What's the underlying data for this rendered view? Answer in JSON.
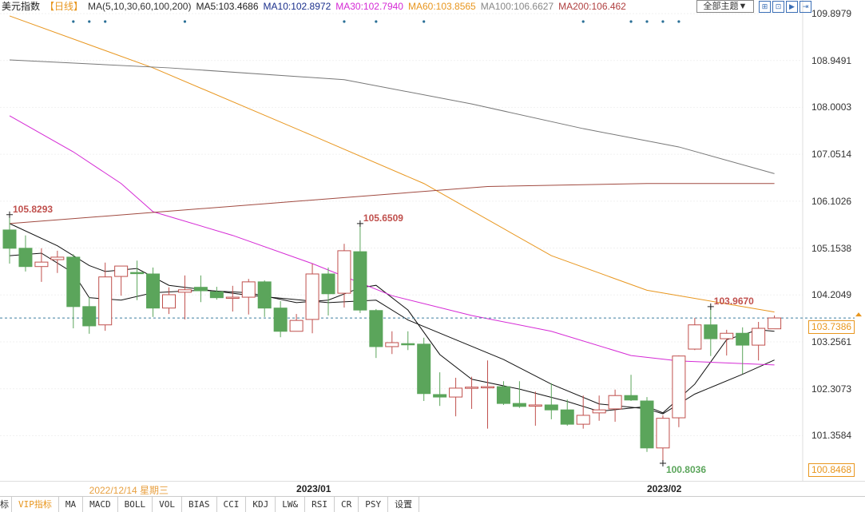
{
  "legend": {
    "name": "美元指数",
    "period": "【日线】",
    "ma_params": "MA(5,10,30,60,100,200)",
    "items": [
      {
        "label": "MA5:103.4686",
        "color": "#222222"
      },
      {
        "label": "MA10:102.8972",
        "color": "#1a2f8c"
      },
      {
        "label": "MA30:102.7940",
        "color": "#d52ad5"
      },
      {
        "label": "MA60:103.8565",
        "color": "#e8961e"
      },
      {
        "label": "MA100:106.6627",
        "color": "#888888"
      },
      {
        "label": "MA200:106.462",
        "color": "#b04040"
      }
    ]
  },
  "toolbar": {
    "theme_label": "全部主题▼",
    "tool_icons": [
      "grid-icon",
      "zoom-in-icon",
      "play-icon",
      "export-icon"
    ]
  },
  "chart_data": {
    "type": "candlestick",
    "up_color": "#c0504d",
    "down_color": "#5ba55b",
    "ylim": [
      100.8468,
      109.8979
    ],
    "y_ticks": [
      "109.8979",
      "108.9491",
      "108.0003",
      "107.0514",
      "106.1026",
      "105.1538",
      "104.2049",
      "103.2561",
      "102.3073",
      "101.3584"
    ],
    "current_price": "103.7386",
    "lowest_visible": "100.8468",
    "x_labels": [
      {
        "text": "2022/12/14 星期三",
        "index": 7,
        "highlight": true
      },
      {
        "text": "2023/01",
        "index": 19,
        "highlight": false
      },
      {
        "text": "2023/02",
        "index": 41,
        "highlight": false
      }
    ],
    "ohlc": [
      [
        105.52,
        105.83,
        104.84,
        105.15
      ],
      [
        105.15,
        105.41,
        104.68,
        104.78
      ],
      [
        104.78,
        105.15,
        104.47,
        104.87
      ],
      [
        104.92,
        105.1,
        104.65,
        104.97
      ],
      [
        104.97,
        105.03,
        103.53,
        103.97
      ],
      [
        103.97,
        104.16,
        103.42,
        103.58
      ],
      [
        103.6,
        104.86,
        103.48,
        104.57
      ],
      [
        104.58,
        104.79,
        104.19,
        104.79
      ],
      [
        104.66,
        104.9,
        104.1,
        104.65
      ],
      [
        104.63,
        104.76,
        103.76,
        103.94
      ],
      [
        103.94,
        104.36,
        103.82,
        104.21
      ],
      [
        104.26,
        104.6,
        103.71,
        104.31
      ],
      [
        104.36,
        104.6,
        104.06,
        104.29
      ],
      [
        104.27,
        104.37,
        104.11,
        104.15
      ],
      [
        104.15,
        104.39,
        103.87,
        104.16
      ],
      [
        104.16,
        104.53,
        103.81,
        104.47
      ],
      [
        104.47,
        104.5,
        103.76,
        103.94
      ],
      [
        103.94,
        104.08,
        103.35,
        103.47
      ],
      [
        103.47,
        103.82,
        103.47,
        103.69
      ],
      [
        103.71,
        104.84,
        103.43,
        104.63
      ],
      [
        104.63,
        104.76,
        103.79,
        104.23
      ],
      [
        104.24,
        105.24,
        103.95,
        105.1
      ],
      [
        105.08,
        105.65,
        103.84,
        103.9
      ],
      [
        103.89,
        103.92,
        102.93,
        103.16
      ],
      [
        103.16,
        103.47,
        103.01,
        103.24
      ],
      [
        103.22,
        103.47,
        103.09,
        103.21
      ],
      [
        103.21,
        103.34,
        102.06,
        102.21
      ],
      [
        102.19,
        102.64,
        101.96,
        102.14
      ],
      [
        102.14,
        102.53,
        101.75,
        102.32
      ],
      [
        102.32,
        102.55,
        101.9,
        102.34
      ],
      [
        102.34,
        102.88,
        101.5,
        102.35
      ],
      [
        102.35,
        102.46,
        101.98,
        102.01
      ],
      [
        102.01,
        102.46,
        101.92,
        101.95
      ],
      [
        101.98,
        102.25,
        101.56,
        101.98
      ],
      [
        101.98,
        102.42,
        101.69,
        101.88
      ],
      [
        101.88,
        102.09,
        101.56,
        101.59
      ],
      [
        101.59,
        102.17,
        101.5,
        101.77
      ],
      [
        101.82,
        102.17,
        101.66,
        101.88
      ],
      [
        101.9,
        102.29,
        101.64,
        102.17
      ],
      [
        102.17,
        102.59,
        102.06,
        102.08
      ],
      [
        102.06,
        102.14,
        101.03,
        101.11
      ],
      [
        101.11,
        101.77,
        100.8,
        101.71
      ],
      [
        101.72,
        102.98,
        101.53,
        102.97
      ],
      [
        103.11,
        103.74,
        103.09,
        103.6
      ],
      [
        103.6,
        103.97,
        102.97,
        103.32
      ],
      [
        103.32,
        103.5,
        102.98,
        103.43
      ],
      [
        103.43,
        103.55,
        102.61,
        103.19
      ],
      [
        103.19,
        103.66,
        102.88,
        103.53
      ],
      [
        103.52,
        103.79,
        103.52,
        103.74
      ]
    ],
    "ma_series": [
      {
        "name": "MA5",
        "color": "#111111",
        "points": [
          [
            0,
            105.0
          ],
          [
            2,
            105.05
          ],
          [
            4,
            104.65
          ],
          [
            5,
            104.15
          ],
          [
            7,
            104.1
          ],
          [
            9,
            104.25
          ],
          [
            12,
            104.3
          ],
          [
            15,
            104.25
          ],
          [
            18,
            104.05
          ],
          [
            20,
            104.1
          ],
          [
            22,
            104.35
          ],
          [
            23,
            104.4
          ],
          [
            25,
            103.9
          ],
          [
            27,
            103.0
          ],
          [
            29,
            102.5
          ],
          [
            32,
            102.3
          ],
          [
            35,
            102.05
          ],
          [
            37,
            101.85
          ],
          [
            40,
            101.95
          ],
          [
            41,
            101.82
          ],
          [
            43,
            102.4
          ],
          [
            45,
            103.3
          ],
          [
            47,
            103.5
          ],
          [
            48,
            103.47
          ]
        ]
      },
      {
        "name": "MA10",
        "color": "#111111",
        "points": [
          [
            0,
            105.65
          ],
          [
            3,
            105.2
          ],
          [
            5,
            104.8
          ],
          [
            6,
            104.68
          ],
          [
            8,
            104.74
          ],
          [
            10,
            104.4
          ],
          [
            15,
            104.2
          ],
          [
            20,
            104.05
          ],
          [
            23,
            104.1
          ],
          [
            25,
            103.7
          ],
          [
            28,
            103.3
          ],
          [
            31,
            102.9
          ],
          [
            34,
            102.4
          ],
          [
            37,
            102.0
          ],
          [
            40,
            101.9
          ],
          [
            41,
            101.8
          ],
          [
            43,
            102.2
          ],
          [
            46,
            102.6
          ],
          [
            48,
            102.89
          ]
        ]
      },
      {
        "name": "MA30",
        "color": "#d52ad5",
        "points": [
          [
            0,
            107.83
          ],
          [
            4,
            107.1
          ],
          [
            7,
            106.46
          ],
          [
            9,
            105.89
          ],
          [
            14,
            105.41
          ],
          [
            19,
            104.84
          ],
          [
            24,
            104.19
          ],
          [
            29,
            103.79
          ],
          [
            34,
            103.47
          ],
          [
            39,
            102.98
          ],
          [
            42,
            102.87
          ],
          [
            48,
            102.79
          ]
        ]
      },
      {
        "name": "MA60",
        "color": "#e8961e",
        "points": [
          [
            0,
            109.85
          ],
          [
            9,
            108.8
          ],
          [
            19,
            107.43
          ],
          [
            26,
            106.46
          ],
          [
            34,
            105.0
          ],
          [
            40,
            104.3
          ],
          [
            48,
            103.86
          ]
        ]
      },
      {
        "name": "MA100",
        "color": "#777777",
        "points": [
          [
            0,
            108.96
          ],
          [
            10,
            108.8
          ],
          [
            21,
            108.56
          ],
          [
            29,
            108.07
          ],
          [
            36,
            107.57
          ],
          [
            42,
            107.2
          ],
          [
            48,
            106.66
          ]
        ]
      },
      {
        "name": "MA200",
        "color": "#a04a40",
        "points": [
          [
            0,
            105.65
          ],
          [
            12,
            105.95
          ],
          [
            24,
            106.25
          ],
          [
            30,
            106.4
          ],
          [
            40,
            106.46
          ],
          [
            48,
            106.46
          ]
        ]
      }
    ],
    "annotations": [
      {
        "text": "105.8293",
        "index": 0,
        "price": 105.83,
        "type": "high"
      },
      {
        "text": "105.6509",
        "index": 22,
        "price": 105.65,
        "type": "high"
      },
      {
        "text": "103.9670",
        "index": 44,
        "price": 103.97,
        "type": "high"
      },
      {
        "text": "100.8036",
        "index": 41,
        "price": 100.8,
        "type": "low"
      }
    ],
    "event_marker_indices": [
      4,
      5,
      6,
      11,
      21,
      23,
      26,
      36,
      39,
      40,
      41,
      42
    ]
  },
  "tabs": [
    {
      "label": "标",
      "active": false
    },
    {
      "label": "VIP指标",
      "active": true
    },
    {
      "label": "MA",
      "active": false
    },
    {
      "label": "MACD",
      "active": false
    },
    {
      "label": "BOLL",
      "active": false
    },
    {
      "label": "VOL",
      "active": false
    },
    {
      "label": "BIAS",
      "active": false
    },
    {
      "label": "CCI",
      "active": false
    },
    {
      "label": "KDJ",
      "active": false
    },
    {
      "label": "LW&",
      "active": false
    },
    {
      "label": "RSI",
      "active": false
    },
    {
      "label": "CR",
      "active": false
    },
    {
      "label": "PSY",
      "active": false
    },
    {
      "label": "设置",
      "active": false
    }
  ]
}
